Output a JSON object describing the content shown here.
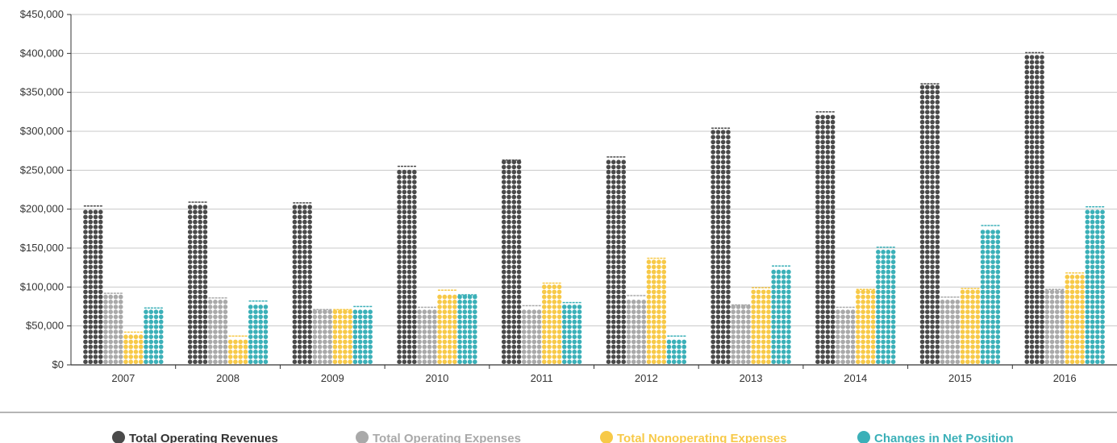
{
  "chart_data": {
    "type": "bar",
    "categories": [
      "2007",
      "2008",
      "2009",
      "2010",
      "2011",
      "2012",
      "2013",
      "2014",
      "2015",
      "2016"
    ],
    "series": [
      {
        "name": "Total Operating Revenues",
        "color": "#4a4a4a",
        "values": [
          204000,
          209000,
          208000,
          255000,
          263000,
          267000,
          304000,
          325000,
          361000,
          401000
        ]
      },
      {
        "name": "Total Operating Expenses",
        "color": "#a9a9a9",
        "values": [
          92000,
          86000,
          71000,
          74000,
          76000,
          89000,
          77000,
          74000,
          87000,
          97000
        ]
      },
      {
        "name": "Total Nonoperating Expenses",
        "color": "#f7c948",
        "values": [
          42000,
          37000,
          71000,
          96000,
          105000,
          137000,
          99000,
          97000,
          98000,
          118000
        ]
      },
      {
        "name": "Changes in Net Position",
        "color": "#3bb0b8",
        "values": [
          73000,
          82000,
          75000,
          90000,
          80000,
          37000,
          127000,
          151000,
          179000,
          203000
        ]
      }
    ],
    "yticks": [
      "$0",
      "$50,000",
      "$100,000",
      "$150,000",
      "$200,000",
      "$250,000",
      "$300,000",
      "$350,000",
      "$400,000",
      "$450,000"
    ],
    "ylim": [
      0,
      450000
    ],
    "grid": true,
    "legend_position": "bottom"
  }
}
